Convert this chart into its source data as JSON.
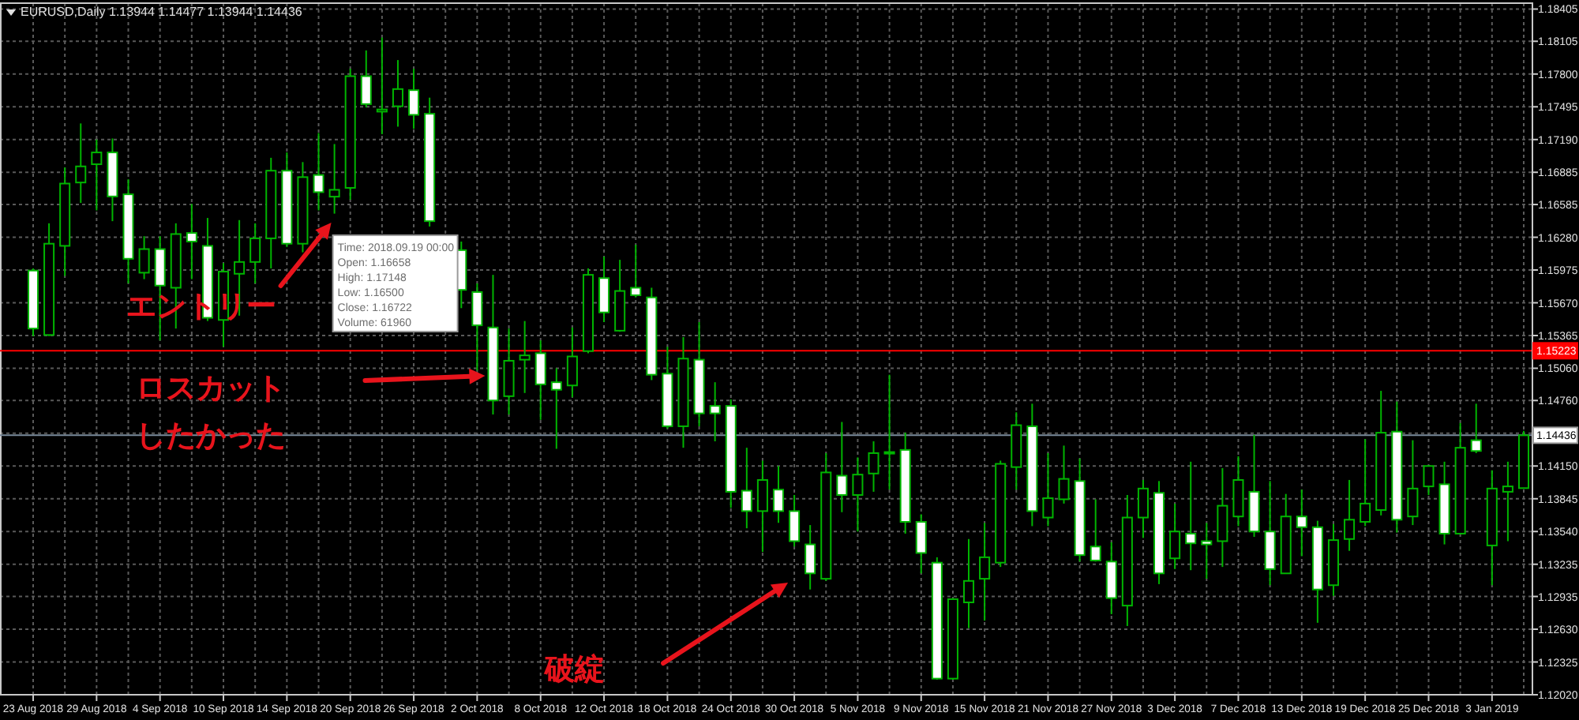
{
  "chart_data": {
    "type": "candlestick",
    "title": "EURUSD,Daily  1.13944 1.14477 1.13944 1.14436",
    "color": "#00b400",
    "categories": [
      "23 Aug 2018",
      null,
      null,
      null,
      "29 Aug 2018",
      null,
      null,
      null,
      "4 Sep 2018",
      null,
      null,
      null,
      "10 Sep 2018",
      null,
      null,
      null,
      "14 Sep 2018",
      null,
      null,
      null,
      "20 Sep 2018",
      null,
      null,
      null,
      "26 Sep 2018",
      null,
      null,
      null,
      "2 Oct 2018",
      null,
      null,
      null,
      "8 Oct 2018",
      null,
      null,
      null,
      "12 Oct 2018",
      null,
      null,
      null,
      "18 Oct 2018",
      null,
      null,
      null,
      "24 Oct 2018",
      null,
      null,
      null,
      "30 Oct 2018",
      null,
      null,
      null,
      "5 Nov 2018",
      null,
      null,
      null,
      "9 Nov 2018",
      null,
      null,
      null,
      "15 Nov 2018",
      null,
      null,
      null,
      "21 Nov 2018",
      null,
      null,
      null,
      "27 Nov 2018",
      null,
      null,
      null,
      "3 Dec 2018",
      null,
      null,
      null,
      "7 Dec 2018",
      null,
      null,
      null,
      "13 Dec 2018",
      null,
      null,
      null,
      "19 Dec 2018",
      null,
      null,
      null,
      "25 Dec 2018",
      null,
      null,
      null,
      "3 Jan 2019",
      null,
      null
    ],
    "ohlc": [
      [
        1.1597,
        1.1599,
        1.1536,
        1.1543
      ],
      [
        1.1537,
        1.1641,
        1.1536,
        1.1622
      ],
      [
        1.162,
        1.1693,
        1.1592,
        1.1678
      ],
      [
        1.1679,
        1.1734,
        1.166,
        1.1694
      ],
      [
        1.1696,
        1.1719,
        1.1653,
        1.1707
      ],
      [
        1.1707,
        1.172,
        1.1643,
        1.1666
      ],
      [
        1.1668,
        1.1682,
        1.1585,
        1.1608
      ],
      [
        1.1595,
        1.1629,
        1.1589,
        1.1617
      ],
      [
        1.1617,
        1.1629,
        1.1532,
        1.1583
      ],
      [
        1.1581,
        1.1641,
        1.1543,
        1.1631
      ],
      [
        1.1632,
        1.1659,
        1.1589,
        1.1624
      ],
      [
        1.162,
        1.1646,
        1.155,
        1.1553
      ],
      [
        1.1551,
        1.1604,
        1.1526,
        1.1596
      ],
      [
        1.1594,
        1.1644,
        1.1555,
        1.1605
      ],
      [
        1.1605,
        1.1641,
        1.1585,
        1.1627
      ],
      [
        1.1627,
        1.1702,
        1.1599,
        1.169
      ],
      [
        1.169,
        1.1707,
        1.1619,
        1.1622
      ],
      [
        1.1622,
        1.1698,
        1.1614,
        1.1684
      ],
      [
        1.1686,
        1.1725,
        1.1653,
        1.167
      ],
      [
        1.16658,
        1.17148,
        1.165,
        1.16722
      ],
      [
        1.1674,
        1.1785,
        1.1663,
        1.1778
      ],
      [
        1.1778,
        1.1802,
        1.1749,
        1.1752
      ],
      [
        1.1745,
        1.1814,
        1.1724,
        1.1747
      ],
      [
        1.175,
        1.1793,
        1.1731,
        1.1766
      ],
      [
        1.1765,
        1.1785,
        1.1729,
        1.1742
      ],
      [
        1.1743,
        1.1758,
        1.1638,
        1.1643
      ],
      null,
      [
        1.1616,
        1.1624,
        1.1562,
        1.1579
      ],
      [
        1.1577,
        1.1585,
        1.1504,
        1.1546
      ],
      [
        1.1544,
        1.1593,
        1.1463,
        1.1476
      ],
      [
        1.148,
        1.1543,
        1.1463,
        1.1513
      ],
      [
        1.1514,
        1.155,
        1.1483,
        1.1518
      ],
      [
        1.152,
        1.1532,
        1.1458,
        1.1491
      ],
      [
        1.1493,
        1.1506,
        1.1431,
        1.1486
      ],
      [
        1.149,
        1.1544,
        1.1479,
        1.1517
      ],
      [
        1.1522,
        1.1599,
        1.152,
        1.1593
      ],
      [
        1.159,
        1.161,
        1.1549,
        1.1558
      ],
      [
        1.1541,
        1.1607,
        1.154,
        1.1578
      ],
      [
        1.1581,
        1.1621,
        1.1572,
        1.1574
      ],
      [
        1.1572,
        1.1581,
        1.1495,
        1.15
      ],
      [
        1.1501,
        1.1526,
        1.145,
        1.1452
      ],
      [
        1.1452,
        1.1535,
        1.1432,
        1.1515
      ],
      [
        1.1514,
        1.1549,
        1.1452,
        1.1464
      ],
      [
        1.1471,
        1.1493,
        1.1438,
        1.1464
      ],
      [
        1.1471,
        1.1477,
        1.1376,
        1.1391
      ],
      [
        1.1392,
        1.1432,
        1.1357,
        1.1373
      ],
      [
        1.1373,
        1.142,
        1.1335,
        1.1402
      ],
      [
        1.1393,
        1.1415,
        1.1362,
        1.1373
      ],
      [
        1.1373,
        1.1388,
        1.134,
        1.1345
      ],
      [
        1.1342,
        1.136,
        1.13,
        1.1315
      ],
      [
        1.131,
        1.1427,
        1.1308,
        1.1409
      ],
      [
        1.1406,
        1.1456,
        1.1372,
        1.1388
      ],
      [
        1.1388,
        1.1423,
        1.1354,
        1.1407
      ],
      [
        1.1408,
        1.1438,
        1.1391,
        1.1427
      ],
      [
        1.1427,
        1.15,
        1.1393,
        1.1428
      ],
      [
        1.143,
        1.1446,
        1.1352,
        1.1363
      ],
      [
        1.1363,
        1.137,
        1.1315,
        1.1334
      ],
      [
        1.1325,
        1.133,
        1.1216,
        1.1217
      ],
      [
        1.1217,
        1.1292,
        1.1216,
        1.1291
      ],
      [
        1.1288,
        1.1347,
        1.1264,
        1.1308
      ],
      [
        1.131,
        1.1362,
        1.1271,
        1.133
      ],
      [
        1.1325,
        1.142,
        1.1321,
        1.1417
      ],
      [
        1.1414,
        1.1465,
        1.1393,
        1.1453
      ],
      [
        1.1452,
        1.1473,
        1.1359,
        1.1373
      ],
      [
        1.1367,
        1.1427,
        1.1359,
        1.1385
      ],
      [
        1.1384,
        1.1434,
        1.138,
        1.1403
      ],
      [
        1.1401,
        1.1422,
        1.1326,
        1.1332
      ],
      [
        1.134,
        1.1384,
        1.1326,
        1.1327
      ],
      [
        1.1326,
        1.1344,
        1.1277,
        1.1292
      ],
      [
        1.1285,
        1.1388,
        1.1266,
        1.1367
      ],
      [
        1.1367,
        1.1402,
        1.1348,
        1.1394
      ],
      [
        1.139,
        1.1401,
        1.1305,
        1.1315
      ],
      [
        1.1329,
        1.138,
        1.1319,
        1.1354
      ],
      [
        1.1352,
        1.1419,
        1.1318,
        1.1343
      ],
      [
        1.1345,
        1.1362,
        1.131,
        1.1342
      ],
      [
        1.1345,
        1.1413,
        1.1321,
        1.1378
      ],
      [
        1.1368,
        1.1424,
        1.1359,
        1.1402
      ],
      [
        1.1391,
        1.1444,
        1.1349,
        1.1354
      ],
      [
        1.1354,
        1.1401,
        1.1304,
        1.1319
      ],
      [
        1.1315,
        1.1389,
        1.1315,
        1.1368
      ],
      [
        1.1368,
        1.1393,
        1.1331,
        1.1358
      ],
      [
        1.1358,
        1.1364,
        1.1269,
        1.13
      ],
      [
        1.1304,
        1.1361,
        1.1294,
        1.1346
      ],
      [
        1.1347,
        1.1402,
        1.1336,
        1.1365
      ],
      [
        1.1363,
        1.144,
        1.1359,
        1.138
      ],
      [
        1.1374,
        1.1485,
        1.1369,
        1.1446
      ],
      [
        1.1447,
        1.1475,
        1.1353,
        1.1365
      ],
      [
        1.1368,
        1.1439,
        1.136,
        1.1394
      ],
      [
        1.1396,
        1.1415,
        1.1388,
        1.1415
      ],
      [
        1.1398,
        1.1419,
        1.1342,
        1.1352
      ],
      [
        1.1352,
        1.1455,
        1.1352,
        1.1432
      ],
      [
        1.1439,
        1.1473,
        1.1427,
        1.1429
      ],
      [
        1.1341,
        1.1411,
        1.1304,
        1.1394
      ],
      [
        1.1391,
        1.1419,
        1.1345,
        1.1396
      ],
      [
        1.13944,
        1.14477,
        1.13944,
        1.14436
      ]
    ],
    "ylim": [
      1.1202,
      1.1846
    ],
    "yticks": [
      1.18405,
      1.18105,
      {
        "value": 1.178,
        "label": "1.17800"
      },
      1.17495,
      {
        "value": 1.1719,
        "label": "1.17190"
      },
      1.16885,
      1.16585,
      {
        "value": 1.1628,
        "label": "1.16280"
      },
      1.15975,
      {
        "value": 1.1567,
        "label": "1.15670"
      },
      1.15365,
      {
        "value": 1.1506,
        "label": "1.15060"
      },
      {
        "value": 1.1476,
        "label": "1.14760"
      },
      {
        "value": 1.14455,
        "label": null
      },
      {
        "value": 1.1415,
        "label": "1.14150"
      },
      1.13845,
      {
        "value": 1.1354,
        "label": "1.13540"
      },
      1.13235,
      1.12935,
      {
        "value": 1.1263,
        "label": "1.12630"
      },
      1.12325,
      {
        "value": 1.1202,
        "label": "1.12020"
      }
    ],
    "grid": true,
    "ref_lines": [
      {
        "axis": "y",
        "value": 1.15223,
        "label": "1.15223",
        "color": "#ff0000"
      },
      {
        "axis": "y",
        "value": 1.14436,
        "label": "1.14436",
        "color": "#778899"
      }
    ],
    "annotations": [
      "Time: 2018.09.19 00:00\nOpen: 1.16658\nHigh: 1.17148\nLow:  1.16500\nClose: 1.16722\nVolume: 61960",
      "エントリー",
      "ロスカット",
      "したかった",
      "破綻"
    ]
  }
}
